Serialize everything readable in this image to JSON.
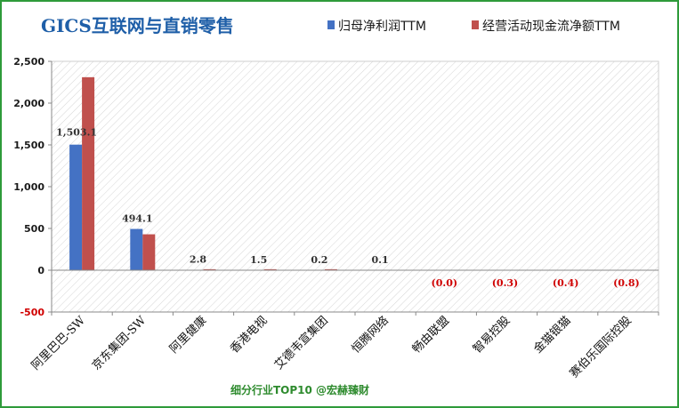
{
  "chart_data": {
    "type": "bar",
    "title": "GICS互联网与直销零售",
    "footer": "细分行业TOP10 @宏赫臻财",
    "categories": [
      "阿里巴巴-SW",
      "京东集团-SW",
      "阿里健康",
      "香港电视",
      "艾德韦宣集团",
      "恒腾网络",
      "畅由联盟",
      "智易控股",
      "金猫银猫",
      "赛伯乐国际控股"
    ],
    "series": [
      {
        "name": "归母净利润TTM",
        "color": "#4472c4",
        "values": [
          1503.1,
          494.1,
          2.8,
          1.5,
          0.2,
          0.1,
          0.0,
          -0.3,
          -0.4,
          -0.8
        ]
      },
      {
        "name": "经营活动现金流净额TTM",
        "color": "#c0504d",
        "values": [
          2310,
          430,
          12,
          12,
          12,
          0,
          0,
          8,
          0,
          10
        ]
      }
    ],
    "data_labels": [
      "1,503.1",
      "494.1",
      "2.8",
      "1.5",
      "0.2",
      "0.1",
      "(0.0)",
      "(0.3)",
      "(0.4)",
      "(0.8)"
    ],
    "yticks": [
      "2,500",
      "2,000",
      "1,500",
      "1,000",
      "500",
      "0",
      "-500"
    ],
    "ytick_values": [
      2500,
      2000,
      1500,
      1000,
      500,
      0,
      -500
    ],
    "ylim": [
      -500,
      2500
    ],
    "legend_position": "top-right",
    "grid": false
  }
}
